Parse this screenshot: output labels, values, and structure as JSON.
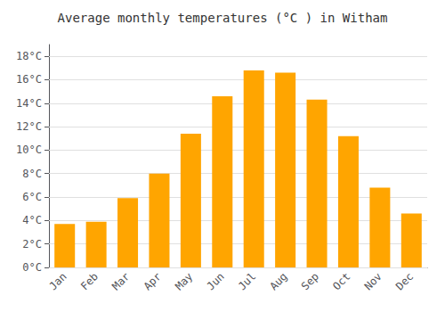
{
  "chart_data": {
    "type": "bar",
    "title": "Average monthly temperatures (°C ) in Witham",
    "categories": [
      "Jan",
      "Feb",
      "Mar",
      "Apr",
      "May",
      "Jun",
      "Jul",
      "Aug",
      "Sep",
      "Oct",
      "Nov",
      "Dec"
    ],
    "values": [
      3.7,
      3.9,
      5.9,
      8.0,
      11.4,
      14.6,
      16.8,
      16.6,
      14.3,
      11.2,
      6.8,
      4.6
    ],
    "color": "#FFA500",
    "ylim": [
      0,
      19
    ],
    "yticks": [
      {
        "value": 0,
        "label": "0°C"
      },
      {
        "value": 2,
        "label": "2°C"
      },
      {
        "value": 4,
        "label": "4°C"
      },
      {
        "value": 6,
        "label": "6°C"
      },
      {
        "value": 8,
        "label": "8°C"
      },
      {
        "value": 10,
        "label": "10°C"
      },
      {
        "value": 12,
        "label": "12°C"
      },
      {
        "value": 14,
        "label": "14°C"
      },
      {
        "value": 16,
        "label": "16°C"
      },
      {
        "value": 18,
        "label": "18°C"
      }
    ],
    "grid": true
  }
}
